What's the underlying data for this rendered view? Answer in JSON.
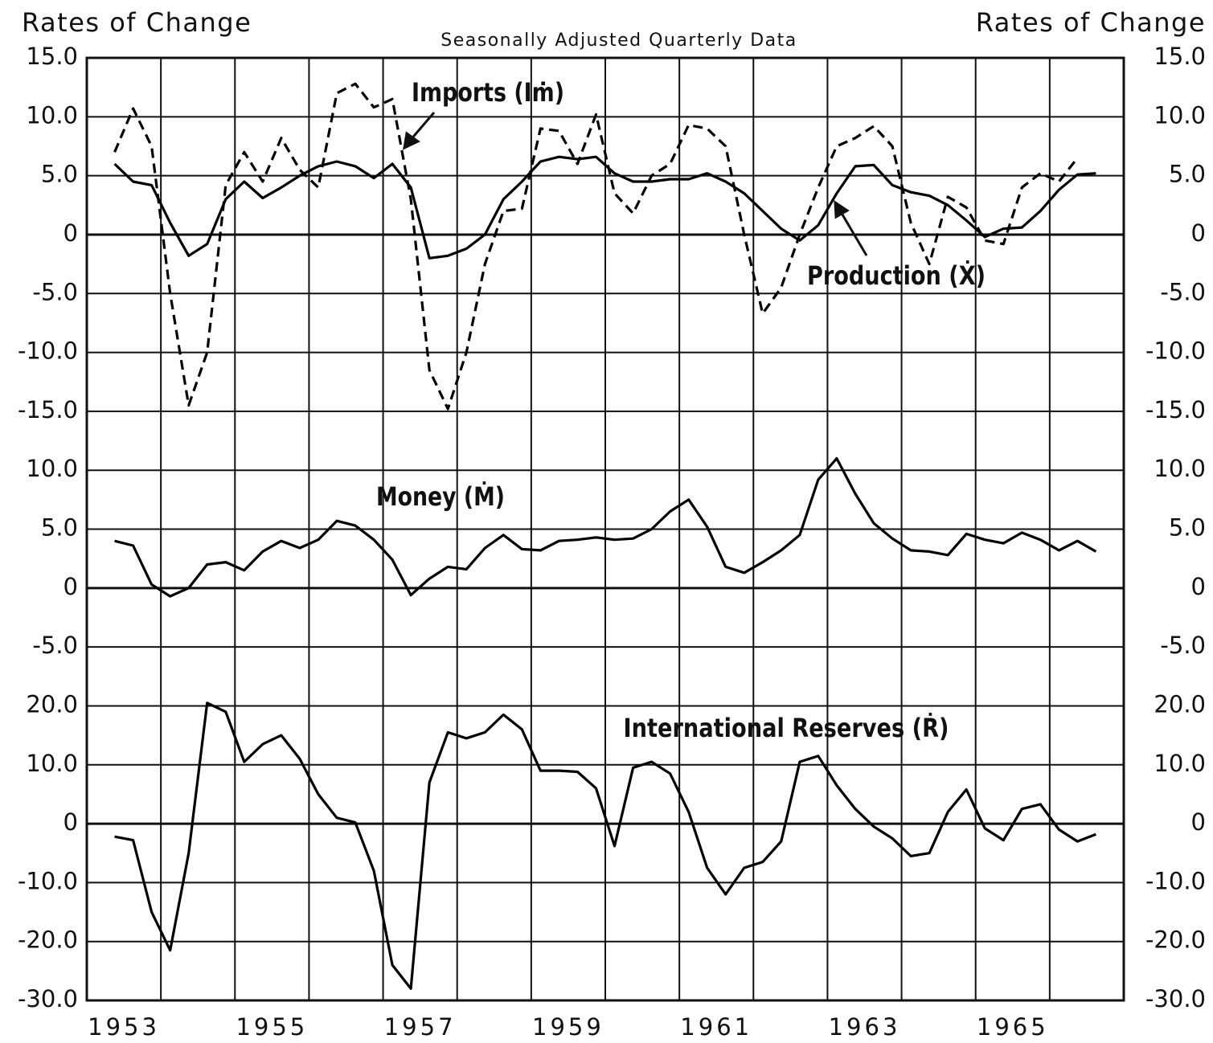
{
  "chart_data": {
    "type": "line",
    "title_left": "Rates of Change",
    "title_right": "Rates of Change",
    "subtitle": "Seasonally Adjusted Quarterly Data",
    "categories": [
      "1953",
      null,
      "1955",
      null,
      "1957",
      null,
      "1959",
      null,
      "1961",
      null,
      "1963",
      null,
      "1965",
      null
    ],
    "panels": [
      {
        "ylim": [
          -15,
          15
        ],
        "yticks": [
          {
            "value": 15,
            "label": "15.0"
          },
          {
            "value": 10,
            "label": "10.0"
          },
          {
            "value": 5,
            "label": "5.0"
          },
          0,
          {
            "value": -5,
            "label": "-5.0"
          },
          {
            "value": -10,
            "label": "-10.0"
          },
          {
            "value": -15,
            "label": "-15.0"
          }
        ],
        "series": [
          {
            "name": "Imports (Iṁ)",
            "color": "#000000",
            "dashed": true,
            "values": [
              null,
              7,
              10.7,
              7.5,
              -5,
              -14.5,
              -10,
              4.2,
              7,
              4.5,
              8.2,
              5.5,
              4,
              12,
              12.8,
              10.8,
              11.5,
              3,
              -11.5,
              -14.8,
              -10,
              -2.5,
              2,
              2.2,
              9,
              8.8,
              6,
              10.2,
              3.5,
              1.8,
              5,
              6,
              9.3,
              9,
              7.5,
              0,
              -6.7,
              -4.5,
              0,
              4,
              7.5,
              8.2,
              9.2,
              7.5,
              1,
              -2.5,
              3.2,
              2.3,
              -0.5,
              -0.8,
              4,
              5.2,
              4.5,
              6.5
            ]
          },
          {
            "name": "Production (Ẋ)",
            "color": "#000000",
            "dashed": false,
            "values": [
              null,
              6,
              4.5,
              4.2,
              1,
              -1.8,
              -0.8,
              3,
              4.5,
              3.1,
              4,
              5,
              5.8,
              6.2,
              5.8,
              4.8,
              6,
              4,
              -2,
              -1.8,
              -1.2,
              0,
              3,
              4.5,
              6.2,
              6.6,
              6.4,
              6.6,
              5.2,
              4.5,
              4.5,
              4.7,
              4.7,
              5.2,
              4.5,
              3.5,
              2,
              0.5,
              -0.5,
              0.8,
              3.5,
              5.8,
              5.9,
              4.2,
              3.6,
              3.3,
              2.5,
              1.2,
              -0.2,
              0.5,
              0.6,
              2,
              3.8,
              5.1,
              5.2
            ]
          }
        ]
      },
      {
        "ylim": [
          -5,
          10
        ],
        "yticks": [
          {
            "value": 10,
            "label": "10.0"
          },
          {
            "value": 5,
            "label": "5.0"
          },
          0,
          {
            "value": -5,
            "label": "-5.0"
          }
        ],
        "series": [
          {
            "name": "Money (Ṁ)",
            "color": "#000000",
            "dashed": false,
            "values": [
              null,
              4,
              3.6,
              0.3,
              -0.7,
              0,
              2,
              2.2,
              1.5,
              3.1,
              4,
              3.4,
              4.1,
              5.7,
              5.3,
              4.1,
              2.4,
              -0.6,
              0.8,
              1.8,
              1.6,
              3.4,
              4.5,
              3.3,
              3.2,
              4,
              4.1,
              4.3,
              4.1,
              4.2,
              5,
              6.5,
              7.5,
              5.2,
              1.8,
              1.3,
              2.2,
              3.2,
              4.5,
              9.2,
              11,
              8,
              5.5,
              4.2,
              3.2,
              3.1,
              2.8,
              4.6,
              4.1,
              3.8,
              4.7,
              4.1,
              3.2,
              4,
              3.1
            ]
          }
        ]
      },
      {
        "ylim": [
          -30,
          20
        ],
        "yticks": [
          {
            "value": 20,
            "label": "20.0"
          },
          {
            "value": 10,
            "label": "10.0"
          },
          0,
          {
            "value": -10,
            "label": "-10.0"
          },
          {
            "value": -20,
            "label": "-20.0"
          },
          {
            "value": -30,
            "label": "-30.0"
          }
        ],
        "series": [
          {
            "name": "International Reserves (Ṙ)",
            "color": "#000000",
            "dashed": false,
            "values": [
              null,
              -2.2,
              -2.8,
              -15,
              -21.5,
              -5,
              20.5,
              19,
              10.5,
              13.5,
              15,
              11,
              5,
              1,
              0.2,
              -8,
              -24,
              -28,
              7,
              15.5,
              14.5,
              15.5,
              18.5,
              16,
              9,
              9,
              8.8,
              6,
              -3.8,
              9.5,
              10.5,
              8.5,
              2,
              -7.5,
              -12,
              -7.5,
              -6.5,
              -3,
              10.5,
              11.5,
              6.5,
              2.5,
              -0.5,
              -2.5,
              -5.5,
              -5,
              2,
              5.8,
              -0.8,
              -2.8,
              2.5,
              3.3,
              -1,
              -3,
              -1.8
            ]
          }
        ]
      }
    ]
  }
}
